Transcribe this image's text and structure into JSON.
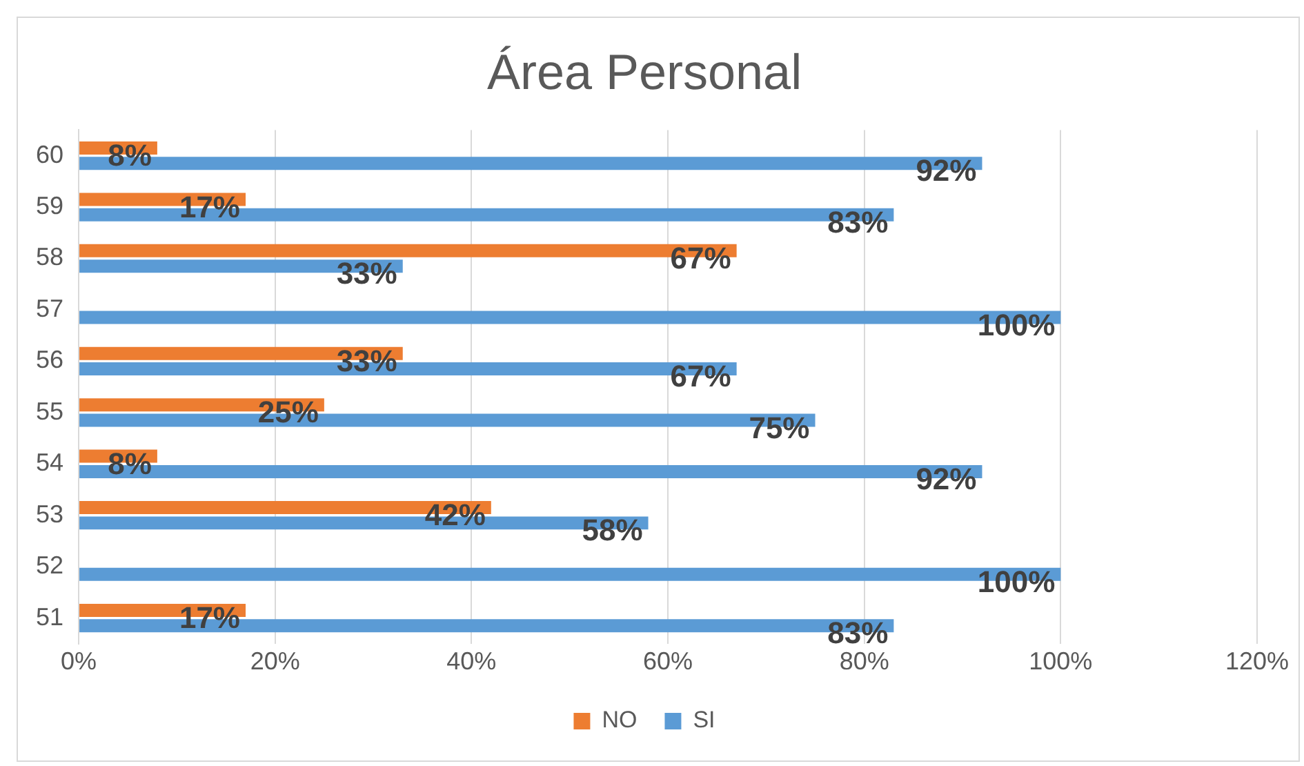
{
  "chart_data": {
    "type": "bar",
    "orientation": "horizontal",
    "title": "Área Personal",
    "categories": [
      "60",
      "59",
      "58",
      "57",
      "56",
      "55",
      "54",
      "53",
      "52",
      "51"
    ],
    "series": [
      {
        "name": "NO",
        "color": "#ed7d31",
        "values": [
          8,
          17,
          67,
          null,
          33,
          25,
          8,
          42,
          null,
          17
        ],
        "value_labels": [
          "8%",
          "17%",
          "67%",
          null,
          "33%",
          "25%",
          "8%",
          "42%",
          null,
          "17%"
        ]
      },
      {
        "name": "SI",
        "color": "#5b9bd5",
        "values": [
          92,
          83,
          33,
          100,
          67,
          75,
          92,
          58,
          100,
          83
        ],
        "value_labels": [
          "92%",
          "83%",
          "33%",
          "100%",
          "67%",
          "75%",
          "92%",
          "58%",
          "100%",
          "83%"
        ]
      }
    ],
    "xlim": [
      0,
      120
    ],
    "xticks": [
      {
        "value": 0,
        "label": "0%"
      },
      {
        "value": 20,
        "label": "20%"
      },
      {
        "value": 40,
        "label": "40%"
      },
      {
        "value": 60,
        "label": "60%"
      },
      {
        "value": 80,
        "label": "80%"
      },
      {
        "value": 100,
        "label": "100%"
      },
      {
        "value": 120,
        "label": "120%"
      }
    ],
    "grid": "x",
    "legend": "bottom"
  }
}
